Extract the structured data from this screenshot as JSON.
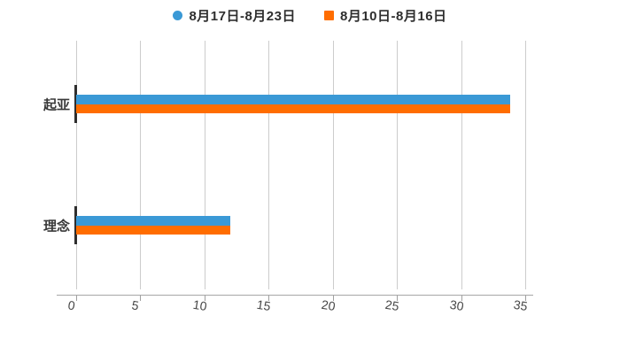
{
  "chart_data": {
    "type": "bar",
    "orientation": "horizontal",
    "title": "",
    "categories": [
      "起亚",
      "理念"
    ],
    "series": [
      {
        "name": "8月17日-8月23日",
        "color": "#3a99d6",
        "marker": "circle",
        "values": [
          33.8,
          12.0
        ]
      },
      {
        "name": "8月10日-8月16日",
        "color": "#ff6d00",
        "marker": "square",
        "values": [
          33.8,
          12.0
        ]
      }
    ],
    "xlabel": "",
    "ylabel": "",
    "xlim": [
      0,
      35
    ],
    "x_ticks": [
      0,
      5,
      10,
      15,
      20,
      25,
      30,
      35
    ],
    "grid": true,
    "legend_position": "top"
  },
  "colors": {
    "background": "#ffffff",
    "gridline": "#cccccc",
    "axis_line": "#a6a6a6",
    "tick_label": "#474747",
    "category_label": "#383838",
    "legend_text": "#2e2e2e",
    "category_axis_tick": "#2e2e2e"
  }
}
